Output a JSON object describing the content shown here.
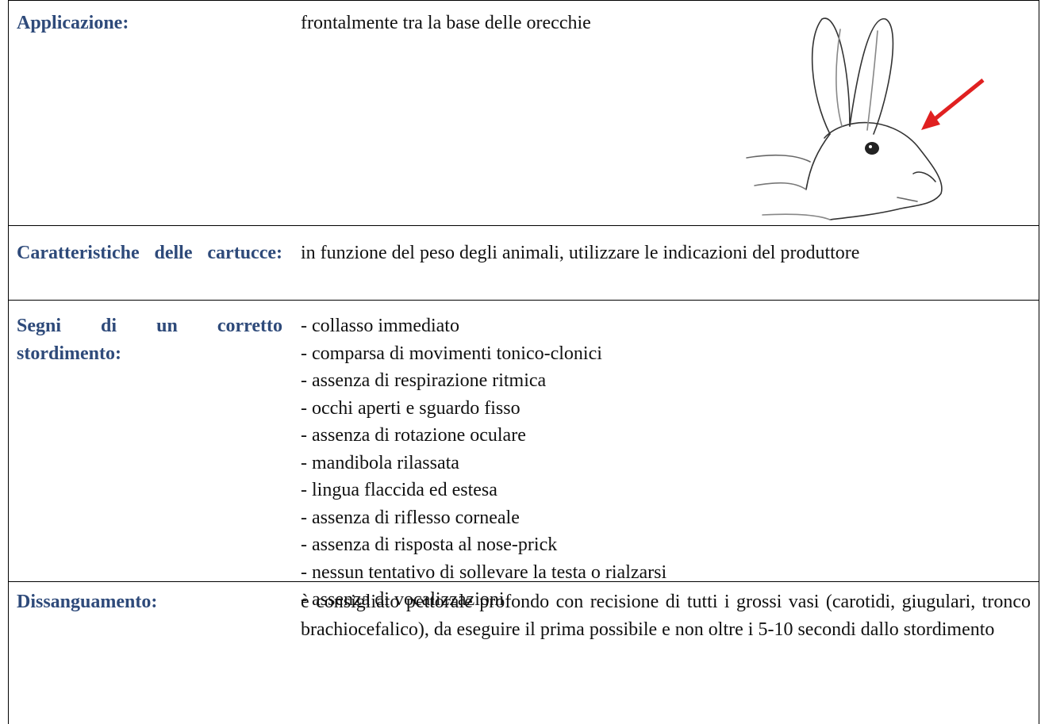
{
  "table": {
    "rows": [
      {
        "label": "Applicazione:",
        "text": "frontalmente tra la base delle orecchie"
      },
      {
        "label": "Caratteristiche delle cartucce:",
        "text": "in funzione del peso degli animali, utilizzare le indicazioni del produttore"
      },
      {
        "label": "Segni di un corretto stordimento:",
        "items": [
          "- collasso  immediato",
          "- comparsa di movimenti tonico-clonici",
          "- assenza di respirazione ritmica",
          "- occhi aperti e sguardo fisso",
          "- assenza di rotazione oculare",
          "- mandibola rilassata",
          "- lingua flaccida ed estesa",
          "- assenza di riflesso corneale",
          "- assenza di risposta al nose-prick",
          "- nessun tentativo di sollevare la testa o rialzarsi",
          "- assenza di vocalizzazioni"
        ]
      },
      {
        "label": "Dissanguamento:",
        "text": "è consigliato pettorale profondo con recisione di tutti i grossi vasi (carotidi, giugulari, tronco brachiocefalico), da eseguire il prima possibile e non oltre i 5-10 secondi dallo stordimento"
      }
    ]
  }
}
